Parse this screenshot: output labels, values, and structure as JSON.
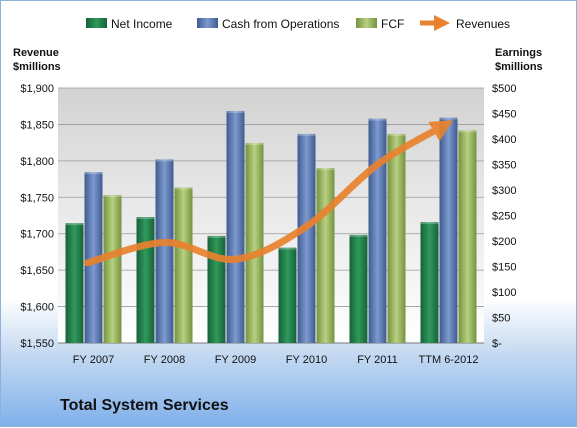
{
  "footer": {
    "title": "Total System Services"
  },
  "chart_data": {
    "type": "bar",
    "categories": [
      "FY 2007",
      "FY 2008",
      "FY 2009",
      "FY 2010",
      "FY 2011",
      "TTM 6-2012"
    ],
    "series": [
      {
        "name": "Net Income",
        "axis": "right",
        "color": "#1f7a45",
        "values": [
          235,
          247,
          210,
          187,
          212,
          237
        ]
      },
      {
        "name": "Cash from Operations",
        "axis": "right",
        "color": "#5a78b0",
        "values": [
          335,
          360,
          455,
          410,
          440,
          442
        ]
      },
      {
        "name": "FCF",
        "axis": "right",
        "color": "#9ab861",
        "values": [
          290,
          305,
          392,
          343,
          410,
          417
        ]
      },
      {
        "name": "Revenues",
        "axis": "left",
        "type": "line",
        "color": "#e9822e",
        "values": [
          1660,
          1688,
          1665,
          1710,
          1795,
          1848
        ]
      }
    ],
    "y_left": {
      "label_line1": "Revenue",
      "label_line2": "$millions",
      "range": [
        1550,
        1900
      ],
      "ticks": [
        "$1,550",
        "$1,600",
        "$1,650",
        "$1,700",
        "$1,750",
        "$1,800",
        "$1,850",
        "$1,900"
      ]
    },
    "y_right": {
      "label_line1": "Earnings",
      "label_line2": "$millions",
      "range": [
        0,
        500
      ],
      "ticks": [
        "$-",
        "$50",
        "$100",
        "$150",
        "$200",
        "$250",
        "$300",
        "$350",
        "$400",
        "$450",
        "$500"
      ]
    },
    "grid": true,
    "legend": "top"
  }
}
